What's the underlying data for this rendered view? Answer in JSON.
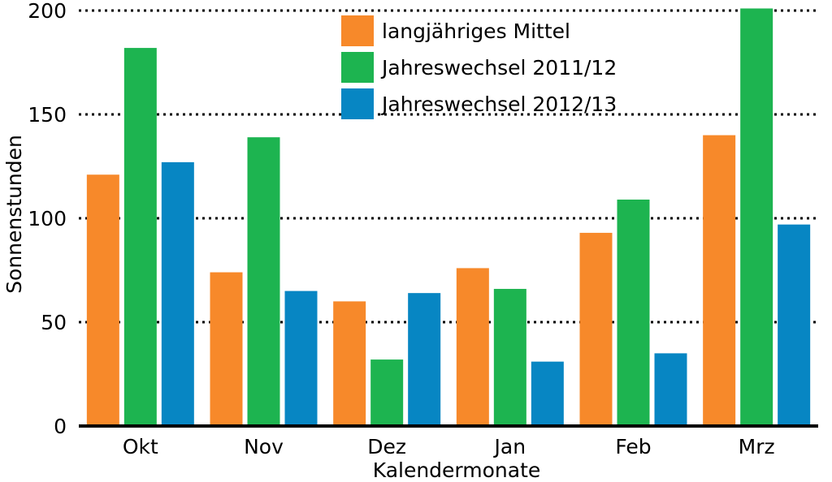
{
  "chart_data": {
    "type": "bar",
    "categories": [
      "Okt",
      "Nov",
      "Dez",
      "Jan",
      "Feb",
      "Mrz"
    ],
    "series": [
      {
        "name": "langjähriges Mittel",
        "color": "#f7892a",
        "values": [
          121,
          74,
          60,
          76,
          93,
          140
        ]
      },
      {
        "name": "Jahreswechsel 2011/12",
        "color": "#1db450",
        "values": [
          182,
          139,
          32,
          66,
          109,
          201
        ]
      },
      {
        "name": "Jahreswechsel 2012/13",
        "color": "#0786c3",
        "values": [
          127,
          65,
          64,
          31,
          35,
          97
        ]
      }
    ],
    "xlabel": "Kalendermonate",
    "ylabel": "Sonnenstunden",
    "ylim": [
      0,
      200
    ],
    "yticks": [
      0,
      50,
      100,
      150,
      200
    ],
    "grid": true,
    "legend_position": "top-center"
  }
}
